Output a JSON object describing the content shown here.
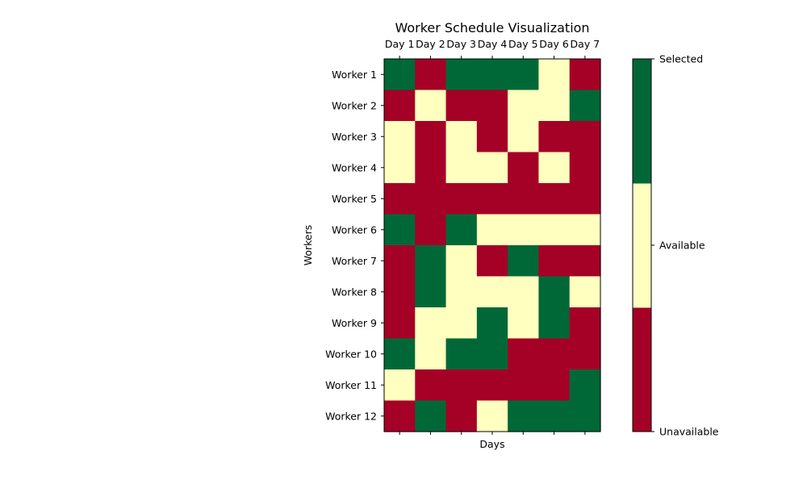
{
  "chart_data": {
    "type": "heatmap",
    "title": "Worker Schedule Visualization",
    "xlabel": "Days",
    "ylabel": "Workers",
    "x_categories": [
      "Day 1",
      "Day 2",
      "Day 3",
      "Day 4",
      "Day 5",
      "Day 6",
      "Day 7"
    ],
    "y_categories": [
      "Worker 1",
      "Worker 2",
      "Worker 3",
      "Worker 4",
      "Worker 5",
      "Worker 6",
      "Worker 7",
      "Worker 8",
      "Worker 9",
      "Worker 10",
      "Worker 11",
      "Worker 12"
    ],
    "x_tick_position": "top",
    "values": [
      [
        2,
        0,
        2,
        2,
        2,
        1,
        0
      ],
      [
        0,
        1,
        0,
        0,
        1,
        1,
        2
      ],
      [
        1,
        0,
        1,
        0,
        1,
        0,
        0
      ],
      [
        1,
        0,
        1,
        1,
        0,
        1,
        0
      ],
      [
        0,
        0,
        0,
        0,
        0,
        0,
        0
      ],
      [
        2,
        0,
        2,
        1,
        1,
        1,
        1
      ],
      [
        0,
        2,
        1,
        0,
        2,
        0,
        0
      ],
      [
        0,
        2,
        1,
        1,
        1,
        2,
        1
      ],
      [
        0,
        1,
        1,
        2,
        1,
        2,
        0
      ],
      [
        2,
        1,
        2,
        2,
        0,
        0,
        0
      ],
      [
        1,
        0,
        0,
        0,
        0,
        0,
        2
      ],
      [
        0,
        2,
        0,
        1,
        2,
        2,
        2
      ]
    ],
    "colorbar": {
      "labels": [
        "Unavailable",
        "Available",
        "Selected"
      ],
      "colors": [
        "#a50026",
        "#ffffbf",
        "#006837"
      ],
      "range": [
        0,
        2
      ]
    },
    "grid": false
  }
}
